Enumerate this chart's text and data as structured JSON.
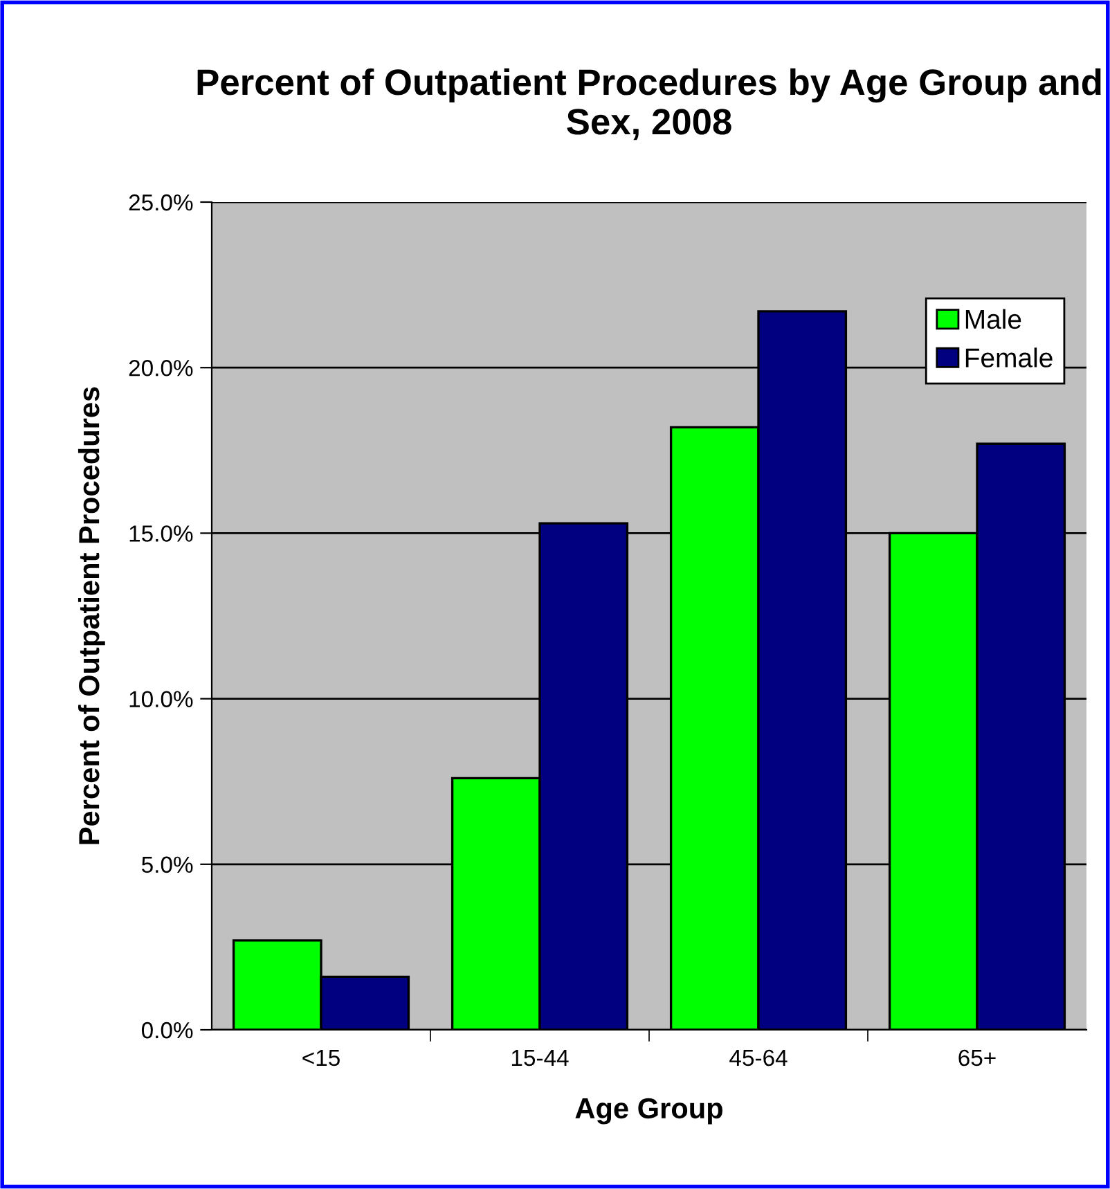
{
  "chart_data": {
    "type": "bar",
    "title": "Percent of Outpatient Procedures by Age Group and Sex, 2008",
    "xlabel": "Age Group",
    "ylabel": "Percent of Outpatient Procedures",
    "categories": [
      "<15",
      "15-44",
      "45-64",
      "65+"
    ],
    "series": [
      {
        "name": "Male",
        "color": "#00ff00",
        "values": [
          2.7,
          7.6,
          18.2,
          15.0
        ]
      },
      {
        "name": "Female",
        "color": "#000080",
        "values": [
          1.6,
          15.3,
          21.7,
          17.7
        ]
      }
    ],
    "ylim": [
      0,
      25
    ],
    "yticks": [
      {
        "value": 0,
        "label": "0.0%"
      },
      {
        "value": 5,
        "label": "5.0%"
      },
      {
        "value": 10,
        "label": "10.0%"
      },
      {
        "value": 15,
        "label": "15.0%"
      },
      {
        "value": 20,
        "label": "20.0%"
      },
      {
        "value": 25,
        "label": "25.0%"
      }
    ],
    "grid": "y",
    "legend": "top right"
  }
}
